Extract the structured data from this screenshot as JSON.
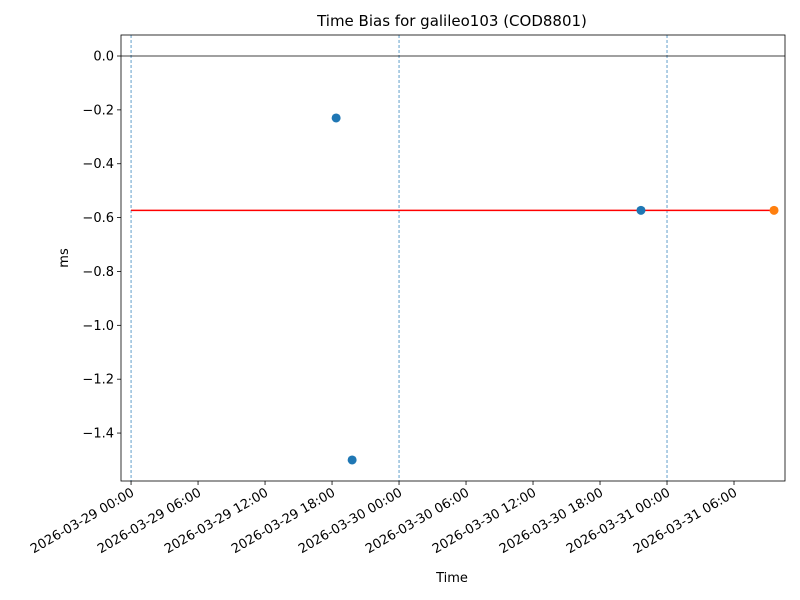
{
  "chart_data": {
    "type": "scatter",
    "title": "Time Bias for galileo103 (COD8801)",
    "xlabel": "Time",
    "ylabel": "ms",
    "series": [
      {
        "color": "#1f77b4",
        "x": [
          "2026-03-29 18:22",
          "2026-03-29 19:48",
          "2026-03-30 21:40"
        ],
        "values": [
          -0.23,
          -1.5,
          -0.573
        ]
      },
      {
        "color": "#ff7f0e",
        "x": [
          "2026-03-31 09:35"
        ],
        "values": [
          -0.573
        ]
      }
    ],
    "lines": [
      {
        "color": "#ff0000",
        "x": [
          "2026-03-29 00:00",
          "2026-03-31 09:35"
        ],
        "values": [
          -0.573,
          -0.573
        ]
      }
    ],
    "hlines": [
      {
        "value": 0,
        "color": "#000000"
      }
    ],
    "vlines": [
      {
        "x": "2026-03-29 00:00",
        "color": "#1f77b4"
      },
      {
        "x": "2026-03-30 00:00",
        "color": "#1f77b4"
      },
      {
        "x": "2026-03-31 00:00",
        "color": "#1f77b4"
      }
    ],
    "xlim": [
      "2026-03-28 23:06",
      "2026-03-31 10:34"
    ],
    "xticks": [
      "2026-03-29 00:00",
      "2026-03-29 06:00",
      "2026-03-29 12:00",
      "2026-03-29 18:00",
      "2026-03-30 00:00",
      "2026-03-30 06:00",
      "2026-03-30 12:00",
      "2026-03-30 18:00",
      "2026-03-31 00:00",
      "2026-03-31 06:00"
    ],
    "ylim": [
      -1.578,
      0.078
    ],
    "yticks": [
      {
        "value": 0,
        "label": "0.0"
      },
      {
        "value": -0.2,
        "label": "−0.2"
      },
      {
        "value": -0.4,
        "label": "−0.4"
      },
      {
        "value": -0.6,
        "label": "−0.6"
      },
      {
        "value": -0.8,
        "label": "−0.8"
      },
      {
        "value": -1.0,
        "label": "−1.0"
      },
      {
        "value": -1.2,
        "label": "−1.2"
      },
      {
        "value": -1.4,
        "label": "−1.4"
      }
    ]
  }
}
